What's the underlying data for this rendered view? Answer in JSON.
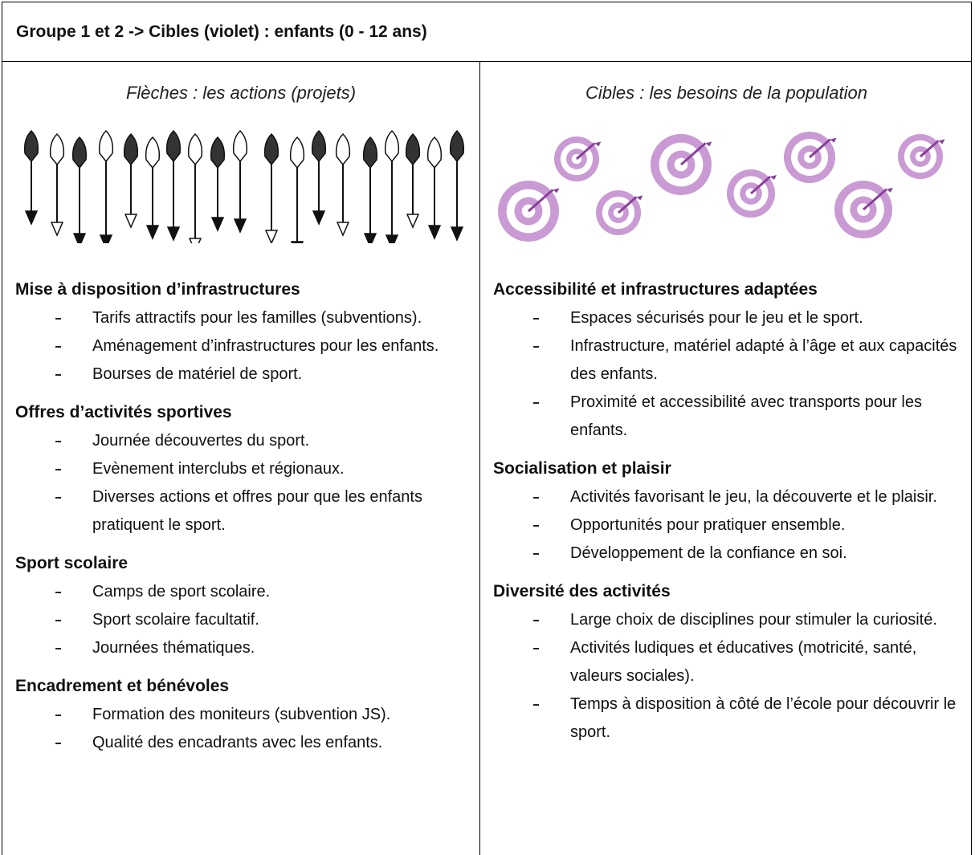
{
  "header": {
    "title": "Groupe 1 et 2 -> Cibles (violet) : enfants (0 - 12 ans)"
  },
  "columns": [
    {
      "caption": "Flèches : les actions (projets)",
      "sections": [
        {
          "heading": "Mise à disposition d’infrastructures",
          "items": [
            "Tarifs attractifs pour les familles (subventions).",
            "Aménagement d’infrastructures pour les enfants.",
            "Bourses de matériel de sport."
          ]
        },
        {
          "heading": "Offres d’activités sportives",
          "items": [
            "Journée découvertes du sport.",
            "Evènement interclubs et régionaux.",
            "Diverses actions et offres pour que les enfants pratiquent le sport."
          ]
        },
        {
          "heading": "Sport scolaire",
          "items": [
            "Camps de sport scolaire.",
            "Sport scolaire facultatif.",
            "Journées thématiques."
          ]
        },
        {
          "heading": "Encadrement et bénévoles",
          "items": [
            "Formation des moniteurs (subvention JS).",
            "Qualité des encadrants avec les enfants."
          ]
        }
      ]
    },
    {
      "caption": "Cibles : les besoins de la population",
      "sections": [
        {
          "heading": "Accessibilité et infrastructures adaptées",
          "items": [
            "Espaces sécurisés pour le jeu et le sport.",
            "Infrastructure, matériel adapté à l’âge et aux capacités des enfants.",
            "Proximité et accessibilité avec transports pour les enfants."
          ]
        },
        {
          "heading": "Socialisation et plaisir",
          "items": [
            "Activités favorisant le jeu, la découverte et le plaisir.",
            "Opportunités pour pratiquer ensemble.",
            "Développement de la confiance en soi."
          ]
        },
        {
          "heading": "Diversité des activités",
          "items": [
            "Large choix de disciplines pour stimuler la curiosité.",
            "Activités ludiques et éducatives (motricité, santé, valeurs sociales).",
            "Temps à disposition à côté de l’école pour découvrir le sport."
          ]
        }
      ]
    }
  ]
}
